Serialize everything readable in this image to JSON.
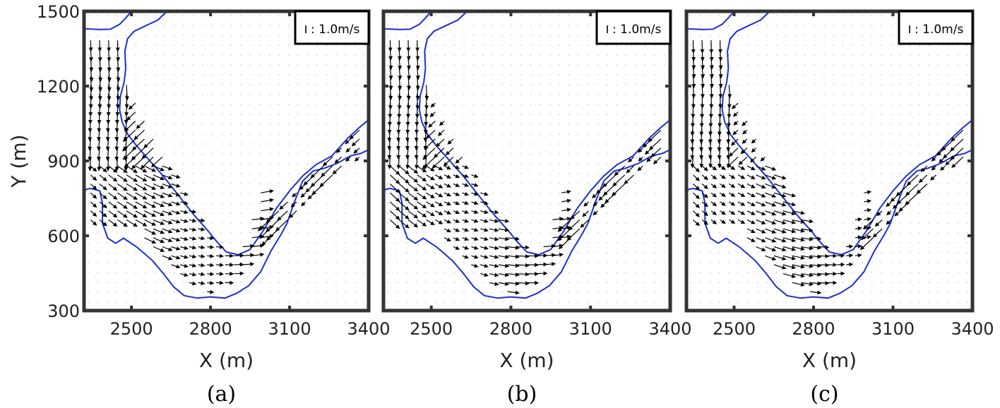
{
  "chart_data": [
    {
      "type": "vector-field",
      "caption": "(a)",
      "xlabel": "X (m)",
      "ylabel": "Y (m)",
      "xlim": [
        2320,
        3400
      ],
      "ylim": [
        300,
        1500
      ],
      "xticks": [
        2500,
        2800,
        3100,
        3400
      ],
      "yticks": [
        300,
        600,
        900,
        1200,
        1500
      ],
      "scale_label": ": 1.0m/s",
      "bank_color": "#1f2fd0"
    },
    {
      "type": "vector-field",
      "caption": "(b)",
      "xlabel": "X (m)",
      "ylabel": "",
      "xlim": [
        2320,
        3400
      ],
      "ylim": [
        300,
        1500
      ],
      "xticks": [
        2500,
        2800,
        3100,
        3400
      ],
      "yticks": [],
      "scale_label": ": 1.0m/s",
      "bank_color": "#1f2fd0"
    },
    {
      "type": "vector-field",
      "caption": "(c)",
      "xlabel": "X (m)",
      "ylabel": "",
      "xlim": [
        2320,
        3400
      ],
      "ylim": [
        300,
        1500
      ],
      "xticks": [
        2500,
        2800,
        3100,
        3400
      ],
      "yticks": [],
      "scale_label": ": 1.0m/s",
      "bank_color": "#1f2fd0"
    }
  ],
  "x_tick_labels": [
    "2500",
    "2800",
    "3100",
    "3400"
  ],
  "y_tick_labels": [
    "300",
    "600",
    "900",
    "1200",
    "1500"
  ]
}
